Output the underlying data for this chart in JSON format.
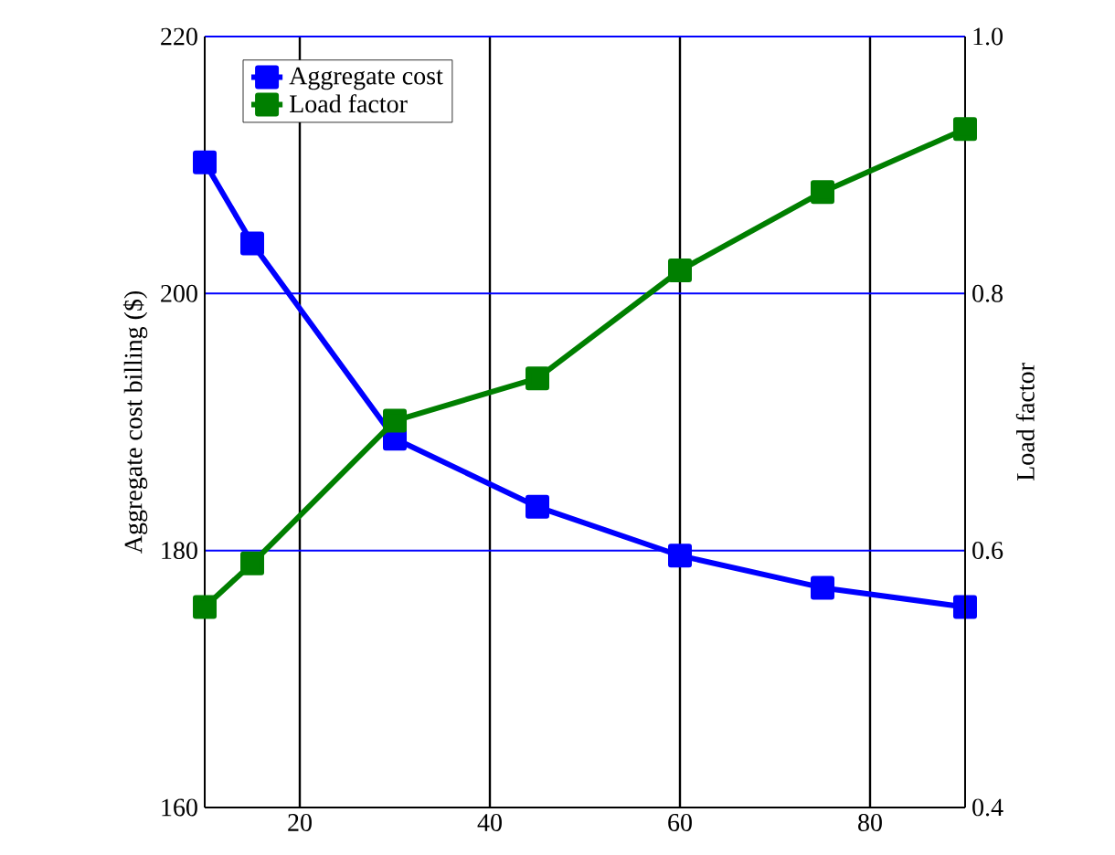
{
  "chart_data": {
    "type": "line",
    "xlabel": null,
    "ylabel": "Aggregate cost billing ($)",
    "y2label": "Load factor",
    "x": [
      10,
      15,
      30,
      45,
      60,
      75,
      90
    ],
    "series": [
      {
        "name": "Aggregate cost",
        "color": "#0000ff",
        "values": [
          210.2,
          203.9,
          188.7,
          183.4,
          179.6,
          177.1,
          175.6
        ]
      },
      {
        "name": "Load factor",
        "color": "#007f00",
        "axis": "y2",
        "values": [
          0.556,
          0.59,
          0.701,
          0.734,
          0.818,
          0.879,
          0.928
        ]
      }
    ],
    "xlim": [
      10,
      90
    ],
    "xticks": [
      20,
      40,
      60,
      80
    ],
    "ylim": [
      160,
      220
    ],
    "yticks": [
      160,
      180,
      200,
      220
    ],
    "y2lim": [
      0.4,
      1.0
    ],
    "y2ticks": [
      0.4,
      0.6,
      0.8,
      {
        "value": 1.0,
        "label": "1.0"
      }
    ],
    "grid": true,
    "legend": "top left",
    "marker": "square",
    "line_style": "solid"
  }
}
